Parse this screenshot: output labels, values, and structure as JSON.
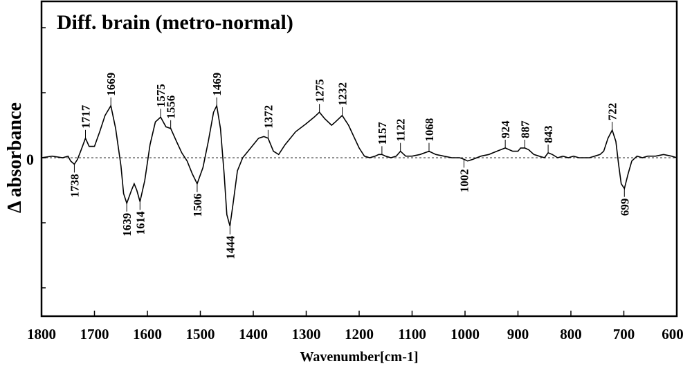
{
  "chart_data": {
    "type": "line",
    "title": "Diff. brain (metro-normal)",
    "xlabel": "Wavenumber[cm-1]",
    "ylabel": "Δ absorbance",
    "xlim": [
      1800,
      600
    ],
    "x_reversed": true,
    "x_ticks": [
      "1800",
      "1700",
      "1600",
      "1500",
      "1400",
      "1300",
      "1200",
      "1100",
      "1000",
      "900",
      "800",
      "700",
      "600"
    ],
    "y_zero_label": "0",
    "ylim": [
      -1.0,
      1.0
    ],
    "zero_line": "dashed",
    "series": [
      {
        "x": [
          1800,
          1780,
          1760,
          1750,
          1745,
          1738,
          1732,
          1725,
          1717,
          1710,
          1700,
          1690,
          1680,
          1669,
          1660,
          1650,
          1645,
          1639,
          1630,
          1625,
          1620,
          1614,
          1605,
          1595,
          1585,
          1575,
          1565,
          1556,
          1545,
          1535,
          1525,
          1515,
          1506,
          1495,
          1485,
          1475,
          1469,
          1462,
          1455,
          1450,
          1444,
          1438,
          1430,
          1420,
          1410,
          1400,
          1390,
          1380,
          1372,
          1362,
          1352,
          1340,
          1320,
          1300,
          1285,
          1275,
          1265,
          1252,
          1245,
          1232,
          1220,
          1210,
          1200,
          1190,
          1180,
          1170,
          1163,
          1157,
          1150,
          1140,
          1130,
          1122,
          1112,
          1100,
          1085,
          1068,
          1055,
          1040,
          1025,
          1010,
          1002,
          995,
          985,
          970,
          955,
          940,
          924,
          910,
          900,
          895,
          887,
          880,
          870,
          860,
          850,
          843,
          835,
          825,
          815,
          805,
          795,
          785,
          775,
          765,
          755,
          745,
          738,
          730,
          722,
          715,
          710,
          705,
          699,
          692,
          685,
          675,
          665,
          655,
          640,
          625,
          610,
          600
        ],
        "y": [
          0.0,
          0.01,
          0.0,
          0.01,
          -0.02,
          -0.04,
          -0.01,
          0.05,
          0.12,
          0.07,
          0.07,
          0.16,
          0.26,
          0.32,
          0.18,
          -0.05,
          -0.22,
          -0.28,
          -0.2,
          -0.16,
          -0.2,
          -0.27,
          -0.14,
          0.08,
          0.22,
          0.25,
          0.19,
          0.18,
          0.1,
          0.03,
          -0.02,
          -0.1,
          -0.16,
          -0.06,
          0.1,
          0.28,
          0.32,
          0.18,
          -0.1,
          -0.35,
          -0.42,
          -0.28,
          -0.08,
          0.0,
          0.04,
          0.08,
          0.12,
          0.13,
          0.12,
          0.04,
          0.02,
          0.08,
          0.16,
          0.21,
          0.25,
          0.28,
          0.24,
          0.2,
          0.22,
          0.26,
          0.2,
          0.13,
          0.06,
          0.01,
          0.0,
          0.01,
          0.02,
          0.02,
          0.01,
          0.0,
          0.01,
          0.04,
          0.01,
          0.01,
          0.02,
          0.04,
          0.02,
          0.01,
          0.0,
          0.0,
          -0.01,
          -0.02,
          -0.01,
          0.01,
          0.02,
          0.04,
          0.06,
          0.04,
          0.04,
          0.06,
          0.06,
          0.05,
          0.02,
          0.01,
          0.0,
          0.03,
          0.02,
          0.0,
          0.01,
          0.0,
          0.01,
          0.0,
          0.0,
          0.0,
          0.01,
          0.02,
          0.04,
          0.12,
          0.17,
          0.1,
          -0.04,
          -0.16,
          -0.19,
          -0.1,
          -0.02,
          0.01,
          0.0,
          0.01,
          0.01,
          0.02,
          0.01,
          0.0
        ]
      }
    ],
    "peak_labels": [
      {
        "x": 1738,
        "label": "1738",
        "side": "below"
      },
      {
        "x": 1717,
        "label": "1717",
        "side": "above"
      },
      {
        "x": 1669,
        "label": "1669",
        "side": "above"
      },
      {
        "x": 1639,
        "label": "1639",
        "side": "below"
      },
      {
        "x": 1614,
        "label": "1614",
        "side": "below"
      },
      {
        "x": 1575,
        "label": "1575",
        "side": "above"
      },
      {
        "x": 1556,
        "label": "1556",
        "side": "above"
      },
      {
        "x": 1506,
        "label": "1506",
        "side": "below"
      },
      {
        "x": 1469,
        "label": "1469",
        "side": "above"
      },
      {
        "x": 1444,
        "label": "1444",
        "side": "below"
      },
      {
        "x": 1372,
        "label": "1372",
        "side": "above"
      },
      {
        "x": 1275,
        "label": "1275",
        "side": "above"
      },
      {
        "x": 1232,
        "label": "1232",
        "side": "above"
      },
      {
        "x": 1157,
        "label": "1157",
        "side": "above"
      },
      {
        "x": 1122,
        "label": "1122",
        "side": "above"
      },
      {
        "x": 1068,
        "label": "1068",
        "side": "above"
      },
      {
        "x": 1002,
        "label": "1002",
        "side": "below"
      },
      {
        "x": 924,
        "label": "924",
        "side": "above"
      },
      {
        "x": 887,
        "label": "887",
        "side": "above"
      },
      {
        "x": 843,
        "label": "843",
        "side": "above"
      },
      {
        "x": 722,
        "label": "722",
        "side": "above"
      },
      {
        "x": 699,
        "label": "699",
        "side": "below"
      }
    ],
    "colors": {
      "line": "#000000",
      "zero_line": "#555555",
      "frame": "#000000"
    },
    "grid": false,
    "legend": "none"
  }
}
